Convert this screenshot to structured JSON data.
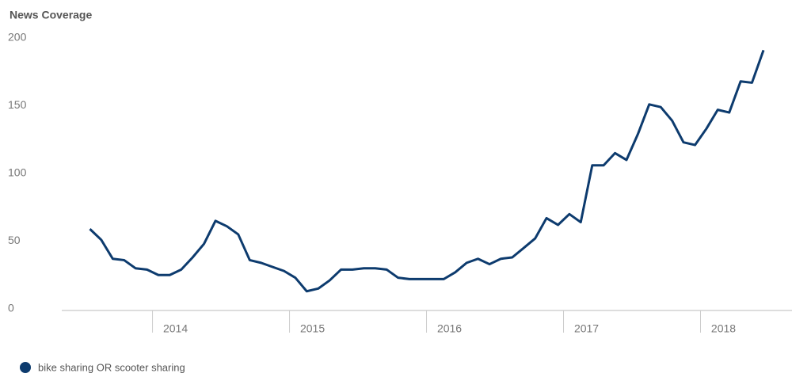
{
  "chart_data": {
    "type": "line",
    "title": "News Coverage",
    "x": [
      2013.375,
      2013.458,
      2013.542,
      2013.625,
      2013.708,
      2013.792,
      2013.875,
      2013.958,
      2014.042,
      2014.125,
      2014.208,
      2014.292,
      2014.375,
      2014.458,
      2014.542,
      2014.625,
      2014.708,
      2014.792,
      2014.875,
      2014.958,
      2015.042,
      2015.125,
      2015.208,
      2015.292,
      2015.375,
      2015.458,
      2015.542,
      2015.625,
      2015.708,
      2015.792,
      2015.875,
      2015.958,
      2016.042,
      2016.125,
      2016.208,
      2016.292,
      2016.375,
      2016.458,
      2016.542,
      2016.625,
      2016.708,
      2016.792,
      2016.875,
      2016.958,
      2017.042,
      2017.125,
      2017.208,
      2017.292,
      2017.375,
      2017.458,
      2017.542,
      2017.625,
      2017.708,
      2017.792,
      2017.875,
      2017.958,
      2018.042,
      2018.125,
      2018.208,
      2018.292
    ],
    "series": [
      {
        "name": "bike sharing OR scooter sharing",
        "color": "#0d3b6e",
        "values": [
          59,
          51,
          37,
          36,
          30,
          29,
          25,
          25,
          29,
          38,
          48,
          65,
          61,
          55,
          36,
          34,
          31,
          28,
          23,
          13,
          15,
          21,
          29,
          29,
          30,
          30,
          29,
          23,
          22,
          22,
          22,
          22,
          27,
          34,
          37,
          33,
          37,
          38,
          45,
          52,
          67,
          62,
          70,
          64,
          106,
          106,
          115,
          110,
          129,
          151,
          149,
          139,
          123,
          121,
          133,
          147,
          145,
          168,
          167,
          191
        ]
      }
    ],
    "xlim": [
      2013.17,
      2018.5
    ],
    "xticks": [
      {
        "value": 2014,
        "label": "2014"
      },
      {
        "value": 2015,
        "label": "2015"
      },
      {
        "value": 2016,
        "label": "2016"
      },
      {
        "value": 2017,
        "label": "2017"
      },
      {
        "value": 2018,
        "label": "2018"
      }
    ],
    "ylim": [
      0,
      200
    ],
    "yticks": [
      0,
      50,
      100,
      150,
      200
    ]
  }
}
